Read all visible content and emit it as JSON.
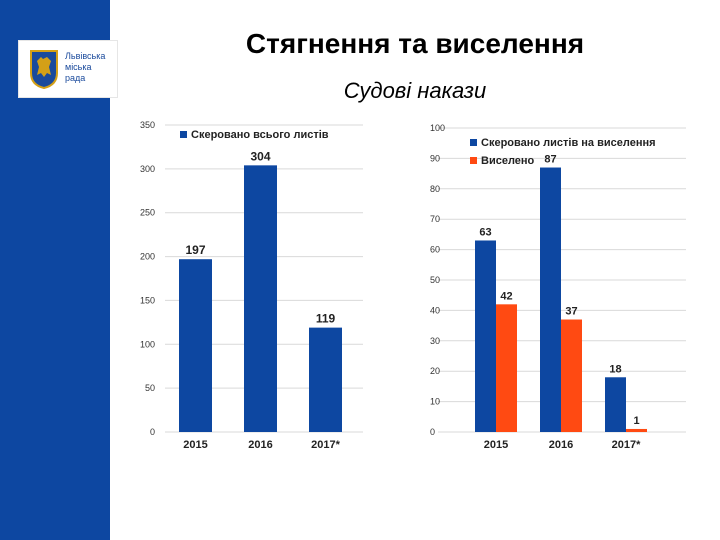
{
  "header": {
    "title": "Стягнення та виселення",
    "subtitle": "Судові накази"
  },
  "logo": {
    "line1": "Львівська",
    "line2": "міська",
    "line3": "рада"
  },
  "colors": {
    "sidebar": "#0d47a1",
    "blue": "#0d47a1",
    "orange": "#ff4a12",
    "grid": "#d9d9d9"
  },
  "chart_data": [
    {
      "type": "bar",
      "categories": [
        "2015",
        "2016",
        "2017*"
      ],
      "series": [
        {
          "name": "Скеровано всього листів",
          "values": [
            197,
            304,
            119
          ]
        }
      ],
      "ylim": [
        0,
        350
      ],
      "yticks": [
        "0",
        "50",
        "100",
        "150",
        "200",
        "250",
        "300",
        "350"
      ],
      "grid": true,
      "legend": "top-center"
    },
    {
      "type": "bar",
      "categories": [
        "2015",
        "2016",
        "2017*"
      ],
      "series": [
        {
          "name": "Скеровано листів на виселення",
          "values": [
            63,
            87,
            18
          ]
        },
        {
          "name": "Виселено",
          "values": [
            42,
            37,
            1
          ]
        }
      ],
      "ylim": [
        0,
        100
      ],
      "yticks": [
        "0",
        "10",
        "20",
        "30",
        "40",
        "50",
        "60",
        "70",
        "80",
        "90",
        "100"
      ],
      "grid": true,
      "legend": "top-left"
    }
  ]
}
